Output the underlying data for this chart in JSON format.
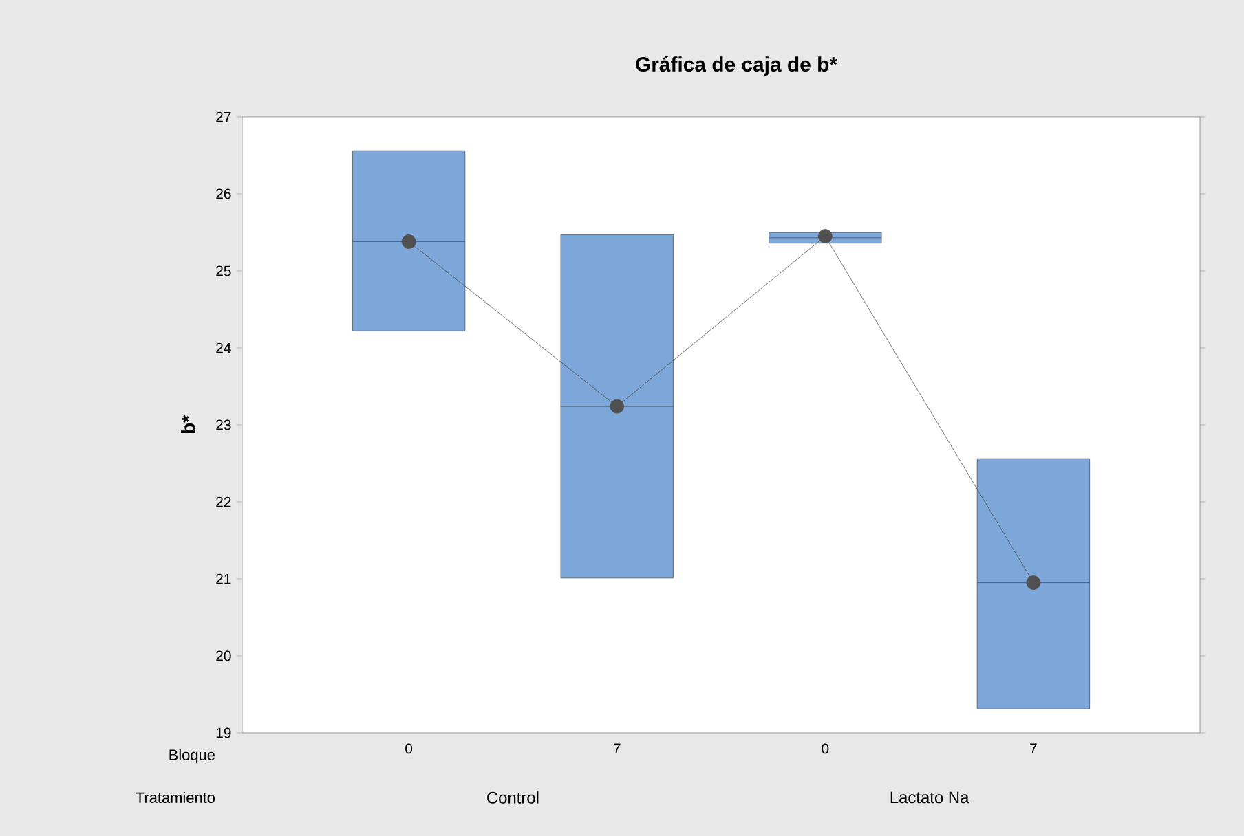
{
  "chart_data": {
    "type": "box",
    "title": "Gráfica de caja de b*",
    "ylabel": "b*",
    "categories": [
      "0",
      "7",
      "0",
      "7"
    ],
    "color": "#7da7d9",
    "boxes": [
      {
        "low": 24.22,
        "q1": 24.22,
        "median": 25.38,
        "q3": 26.56,
        "high": 26.56
      },
      {
        "low": 21.01,
        "q1": 21.01,
        "median": 23.24,
        "q3": 25.47,
        "high": 25.47
      },
      {
        "low": 25.36,
        "q1": 25.36,
        "median": 25.43,
        "q3": 25.5,
        "high": 25.5
      },
      {
        "low": 19.31,
        "q1": 19.31,
        "median": 20.95,
        "q3": 22.56,
        "high": 22.56
      }
    ],
    "series": [
      {
        "type": "line",
        "color": "#505050",
        "values": [
          25.38,
          23.24,
          25.45,
          20.95
        ]
      }
    ],
    "marker": "circle",
    "ylim": [
      19,
      27
    ],
    "yticks": [
      19,
      20,
      21,
      22,
      23,
      24,
      25,
      26,
      27
    ],
    "grid": false,
    "annotations": [
      "Bloque",
      "Tratamiento",
      "Control",
      "Lactato Na"
    ]
  }
}
